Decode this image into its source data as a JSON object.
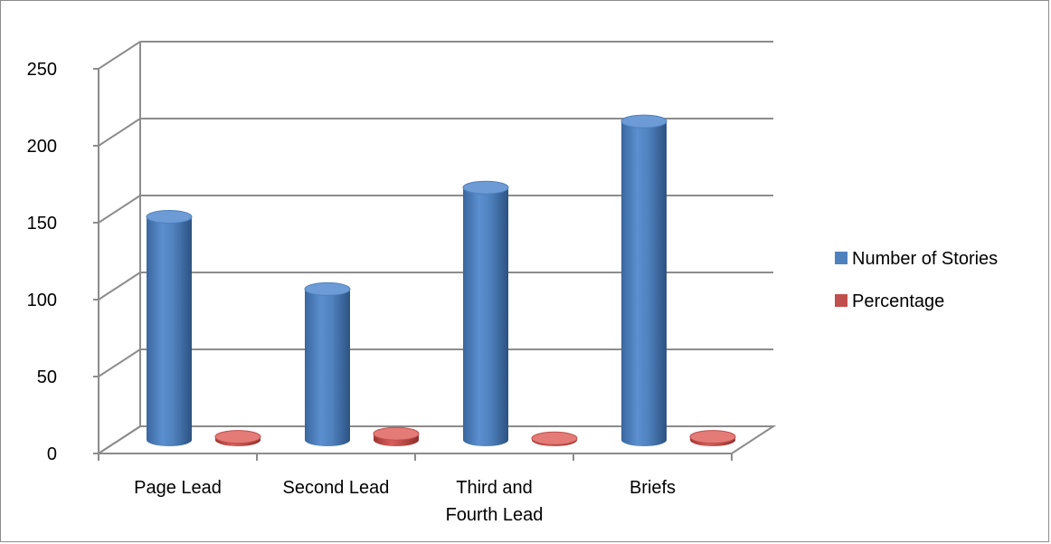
{
  "chart_data": {
    "type": "bar",
    "categories": [
      "Page Lead",
      "Second Lead",
      "Third and Fourth Lead",
      "Briefs"
    ],
    "category_lines": [
      [
        "Page Lead"
      ],
      [
        "Second Lead"
      ],
      [
        "Third and",
        "Fourth Lead"
      ],
      [
        "Briefs"
      ]
    ],
    "series": [
      {
        "name": "Number of Stories",
        "values": [
          145,
          98,
          164,
          207
        ],
        "color": "#4f81bd"
      },
      {
        "name": "Percentage",
        "values": [
          2,
          4,
          1,
          2
        ],
        "color": "#c0504d"
      }
    ],
    "ylim": [
      0,
      250
    ],
    "yticks": [
      "0",
      "50",
      "100",
      "150",
      "200",
      "250"
    ],
    "grid": true,
    "three_d": true,
    "legend_position": "right",
    "title": "",
    "xlabel": "",
    "ylabel": ""
  }
}
